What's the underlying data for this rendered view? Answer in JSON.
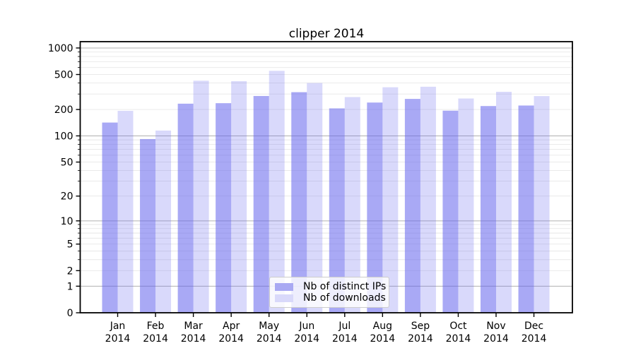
{
  "chart_data": {
    "type": "bar",
    "title": "clipper 2014",
    "months": [
      "Jan",
      "Feb",
      "Mar",
      "Apr",
      "May",
      "Jun",
      "Jul",
      "Aug",
      "Sep",
      "Oct",
      "Nov",
      "Dec"
    ],
    "year_label": "2014",
    "series": [
      {
        "name": "Nb of distinct IPs",
        "values": [
          142,
          92,
          233,
          236,
          285,
          315,
          206,
          240,
          264,
          194,
          219,
          222
        ]
      },
      {
        "name": "Nb of downloads",
        "values": [
          193,
          115,
          425,
          420,
          550,
          400,
          277,
          358,
          363,
          267,
          318,
          284
        ]
      }
    ],
    "yscale": "log10(y+1)",
    "y_tick_labels": [
      0,
      1,
      2,
      5,
      10,
      20,
      50,
      100,
      200,
      500,
      1000
    ],
    "ylim": [
      0,
      1160
    ],
    "grid": true,
    "legend_position": "lower-center",
    "colors": {
      "bar_base": "#6666ee",
      "ips_alpha": 0.56,
      "downloads_alpha": 0.25,
      "ips_on_white": "#a9a9f3",
      "downloads_on_white": "#d9d9fa",
      "grid_major": "#b0b0b0",
      "grid_minor": "#e7e7e7",
      "spine": "#000000"
    }
  }
}
